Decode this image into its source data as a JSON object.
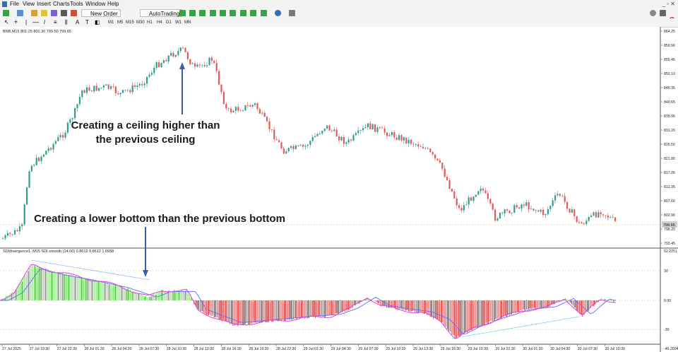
{
  "menu": [
    "File",
    "View",
    "Insert",
    "Charts",
    "Tools",
    "Window",
    "Help"
  ],
  "toolbar": {
    "new_order": "New Order",
    "autotrading": "AutoTrading",
    "timeframes": [
      "M1",
      "M5",
      "M15",
      "M30",
      "H1",
      "H4",
      "D1",
      "W1",
      "MN"
    ],
    "alerts_count": "1"
  },
  "chart": {
    "header": "BNB,M15  801.25 801.30 799.50 799.65",
    "price_axis": [
      "864.25",
      "859.90",
      "855.45",
      "850.10",
      "845.35",
      "840.65",
      "835.95",
      "831.20",
      "826.50",
      "821.80",
      "817.05",
      "812.35",
      "807.60",
      "802.90",
      "798.20",
      "793.45"
    ],
    "current_price": "799.65",
    "annotation_ceiling_line1": "Creating a ceiling higher than",
    "annotation_ceiling_line2": "the previous ceiling",
    "annotation_bottom": "Creating a lower bottom than the previous bottom",
    "time_axis": [
      "27 Jul 2025",
      "27 Jul 19:30",
      "27 Jul 22:30",
      "28 Jul 01:30",
      "28 Jul 04:30",
      "28 Jul 07:30",
      "28 Jul 10:30",
      "28 Jul 13:30",
      "28 Jul 16:30",
      "28 Jul 19:30",
      "28 Jul 22:30",
      "29 Jul 01:30",
      "29 Jul 04:30",
      "29 Jul 07:30",
      "29 Jul 10:30",
      "29 Jul 13:30",
      "29 Jul 16:30",
      "29 Jul 19:30",
      "29 Jul 22:30",
      "30 Jul 01:30",
      "30 Jul 04:30",
      "30 Jul 07:30",
      "30 Jul 10:30"
    ]
  },
  "indicator": {
    "header": "SDIdivergence1: M15 SDI smooth (14.00) 0.8612 0.8612 1.0938",
    "axis": [
      "52.2251",
      "30",
      "0.00",
      "-30",
      "-46.2604"
    ]
  },
  "colors": {
    "bull": "#2f9e8f",
    "bear": "#e05b5b",
    "hist_pos": "#7be06a",
    "hist_neg": "#d94a4a",
    "line_fast": "#e040e0",
    "line_slow": "#5a6cff",
    "arrow": "#3a5fa8",
    "level": "#e6d36a"
  }
}
